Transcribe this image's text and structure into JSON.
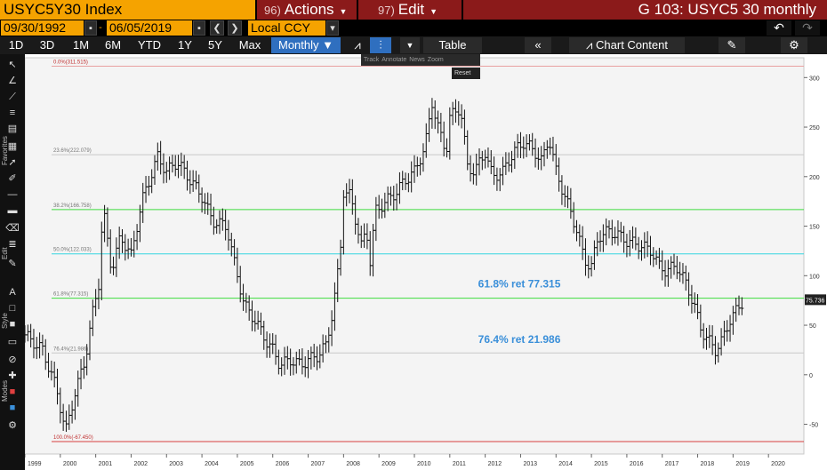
{
  "header": {
    "ticker": "USYC5Y30 Index",
    "actions_num": "96)",
    "actions_label": "Actions",
    "edit_num": "97)",
    "edit_label": "Edit",
    "chart_title": "G 103: USYC5 30 monthly"
  },
  "range": {
    "start_date": "09/30/1992",
    "end_date": "06/05/2019",
    "currency": "Local CCY"
  },
  "toolbar": {
    "periods": [
      "1D",
      "3D",
      "1M",
      "6M",
      "YTD",
      "1Y",
      "5Y",
      "Max"
    ],
    "frequency": "Monthly",
    "table_label": "Table",
    "chart_content_label": "Chart Content"
  },
  "mini_toolbar": [
    "Track",
    "Annotate",
    "News",
    "Zoom"
  ],
  "reset_label": "Reset",
  "sidebar_labels": [
    "Favorites",
    "Edit",
    "Style",
    "Modes"
  ],
  "chart_data": {
    "type": "bar",
    "subtype": "ohlc",
    "xlim": [
      1999,
      2021
    ],
    "ylim": [
      -80,
      320
    ],
    "x_ticks": [
      {
        "x": 1999,
        "label": "1999"
      },
      {
        "x": 2000,
        "label": "2000"
      },
      {
        "x": 2001,
        "label": "2001"
      },
      {
        "x": 2002,
        "label": "2002"
      },
      {
        "x": 2003,
        "label": "2003"
      },
      {
        "x": 2004,
        "label": "2004"
      },
      {
        "x": 2005,
        "label": "2005"
      },
      {
        "x": 2006,
        "label": "2006"
      },
      {
        "x": 2007,
        "label": "2007"
      },
      {
        "x": 2008,
        "label": "2008"
      },
      {
        "x": 2009,
        "label": "2009"
      },
      {
        "x": 2010,
        "label": "2010"
      },
      {
        "x": 2011,
        "label": "2011"
      },
      {
        "x": 2012,
        "label": "2012"
      },
      {
        "x": 2013,
        "label": "2013"
      },
      {
        "x": 2014,
        "label": "2014"
      },
      {
        "x": 2015,
        "label": "2015"
      },
      {
        "x": 2016,
        "label": "2016"
      },
      {
        "x": 2017,
        "label": "2017"
      },
      {
        "x": 2018,
        "label": "2018"
      },
      {
        "x": 2019,
        "label": "2019"
      },
      {
        "x": 2020,
        "label": "2020"
      }
    ],
    "y_ticks": [
      -50,
      0,
      50,
      100,
      150,
      200,
      250,
      300
    ],
    "last_value": "75.736",
    "fib_levels": [
      {
        "label": "0.0%(311.515)",
        "value": 311.515,
        "color": "#e8a0a0"
      },
      {
        "label": "23.6%(222.079)",
        "value": 222.079,
        "color": "#c8c8c8"
      },
      {
        "label": "38.2%(166.758)",
        "value": 166.758,
        "color": "#3ddc3d"
      },
      {
        "label": "50.0%(122.033)",
        "value": 122.033,
        "color": "#35d5e0"
      },
      {
        "label": "61.8%(77.315)",
        "value": 77.315,
        "color": "#3ddc3d"
      },
      {
        "label": "76.4%(21.986)",
        "value": 21.986,
        "color": "#c8c8c8"
      },
      {
        "label": "100.0%(-67.450)",
        "value": -67.45,
        "color": "#d94040"
      }
    ],
    "annotations": [
      {
        "text": "61.8% ret 77.315",
        "x": 2011.8,
        "y": 88,
        "color": "#3a8fd9"
      },
      {
        "text": "76.4% ret 21.986",
        "x": 2011.8,
        "y": 32,
        "color": "#3a8fd9"
      }
    ],
    "key_points": [
      [
        1999.0,
        40
      ],
      [
        1999.5,
        25
      ],
      [
        1999.9,
        -15
      ],
      [
        2000.15,
        -58
      ],
      [
        2000.4,
        -20
      ],
      [
        2000.7,
        15
      ],
      [
        2000.9,
        60
      ],
      [
        2001.1,
        95
      ],
      [
        2001.2,
        170
      ],
      [
        2001.45,
        105
      ],
      [
        2001.7,
        140
      ],
      [
        2002.0,
        120
      ],
      [
        2002.3,
        175
      ],
      [
        2002.6,
        205
      ],
      [
        2002.75,
        220
      ],
      [
        2003.0,
        205
      ],
      [
        2003.3,
        215
      ],
      [
        2003.6,
        200
      ],
      [
        2004.0,
        180
      ],
      [
        2004.3,
        155
      ],
      [
        2004.7,
        150
      ],
      [
        2004.9,
        115
      ],
      [
        2005.2,
        70
      ],
      [
        2005.5,
        55
      ],
      [
        2005.8,
        35
      ],
      [
        2006.0,
        25
      ],
      [
        2006.2,
        10
      ],
      [
        2006.5,
        15
      ],
      [
        2006.8,
        10
      ],
      [
        2007.0,
        15
      ],
      [
        2007.3,
        20
      ],
      [
        2007.5,
        30
      ],
      [
        2007.7,
        65
      ],
      [
        2007.9,
        120
      ],
      [
        2008.0,
        185
      ],
      [
        2008.2,
        180
      ],
      [
        2008.5,
        130
      ],
      [
        2008.65,
        145
      ],
      [
        2008.75,
        115
      ],
      [
        2008.9,
        165
      ],
      [
        2009.2,
        175
      ],
      [
        2009.5,
        185
      ],
      [
        2009.7,
        195
      ],
      [
        2010.0,
        205
      ],
      [
        2010.3,
        230
      ],
      [
        2010.5,
        275
      ],
      [
        2010.7,
        245
      ],
      [
        2010.9,
        225
      ],
      [
        2011.0,
        260
      ],
      [
        2011.3,
        270
      ],
      [
        2011.5,
        210
      ],
      [
        2011.7,
        205
      ],
      [
        2012.0,
        225
      ],
      [
        2012.2,
        200
      ],
      [
        2012.5,
        205
      ],
      [
        2012.8,
        225
      ],
      [
        2013.1,
        235
      ],
      [
        2013.4,
        225
      ],
      [
        2013.6,
        215
      ],
      [
        2013.8,
        240
      ],
      [
        2014.0,
        205
      ],
      [
        2014.3,
        175
      ],
      [
        2014.6,
        145
      ],
      [
        2014.8,
        115
      ],
      [
        2015.0,
        110
      ],
      [
        2015.2,
        140
      ],
      [
        2015.5,
        145
      ],
      [
        2015.8,
        140
      ],
      [
        2016.0,
        135
      ],
      [
        2016.4,
        130
      ],
      [
        2016.7,
        125
      ],
      [
        2016.9,
        110
      ],
      [
        2017.1,
        105
      ],
      [
        2017.4,
        110
      ],
      [
        2017.7,
        90
      ],
      [
        2017.9,
        70
      ],
      [
        2018.1,
        45
      ],
      [
        2018.3,
        35
      ],
      [
        2018.5,
        25
      ],
      [
        2018.7,
        35
      ],
      [
        2018.9,
        55
      ],
      [
        2019.1,
        65
      ],
      [
        2019.3,
        75.7
      ]
    ]
  }
}
